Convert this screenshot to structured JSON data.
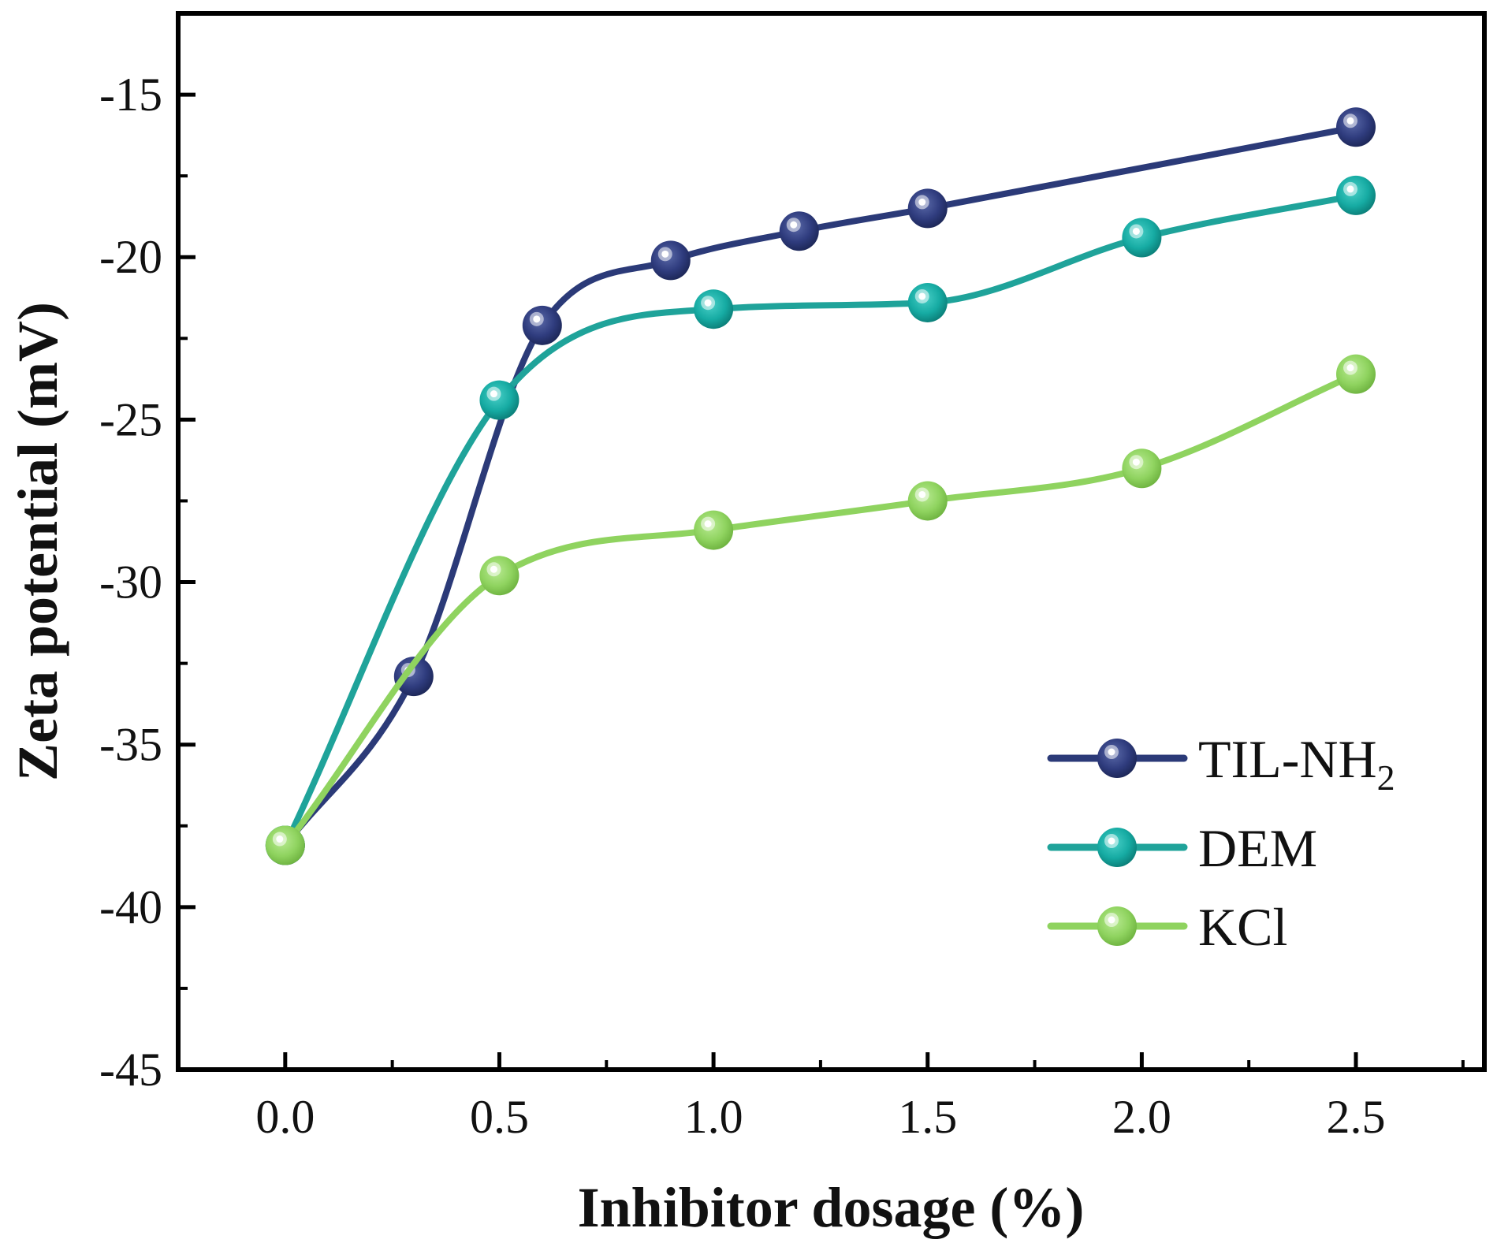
{
  "chart_data": {
    "type": "line",
    "title": "",
    "xlabel": "Inhibitor dosage (%)",
    "ylabel": "Zeta potential (mV)",
    "xlim": [
      -0.25,
      2.8
    ],
    "ylim": [
      -45,
      -12.5
    ],
    "xticks": [
      0.0,
      0.5,
      1.0,
      1.5,
      2.0,
      2.5
    ],
    "xtick_labels": [
      "0.0",
      "0.5",
      "1.0",
      "1.5",
      "2.0",
      "2.5"
    ],
    "yticks": [
      -45,
      -40,
      -35,
      -30,
      -25,
      -20,
      -15
    ],
    "ytick_labels": [
      "-45",
      "-40",
      "-35",
      "-30",
      "-25",
      "-20",
      "-15"
    ],
    "grid": false,
    "legend_position": "right-lower",
    "series": [
      {
        "name": "TIL-NH",
        "name_subscript": "2",
        "color": "#2b3a78",
        "marker_color": "#2f3c7e",
        "x": [
          0.0,
          0.3,
          0.6,
          0.9,
          1.2,
          1.5,
          2.5
        ],
        "y": [
          -38.1,
          -32.9,
          -22.1,
          -20.1,
          -19.2,
          -18.5,
          -16.0
        ]
      },
      {
        "name": "DEM",
        "color": "#1fa39a",
        "marker_color": "#16aba3",
        "x": [
          0.0,
          0.5,
          1.0,
          1.5,
          2.0,
          2.5
        ],
        "y": [
          -38.1,
          -24.4,
          -21.6,
          -21.4,
          -19.4,
          -18.1
        ]
      },
      {
        "name": "KCl",
        "color": "#8fd35f",
        "marker_color": "#8fd35f",
        "x": [
          0.0,
          0.5,
          1.0,
          1.5,
          2.0,
          2.5
        ],
        "y": [
          -38.1,
          -29.8,
          -28.4,
          -27.5,
          -26.5,
          -23.6
        ]
      }
    ]
  }
}
